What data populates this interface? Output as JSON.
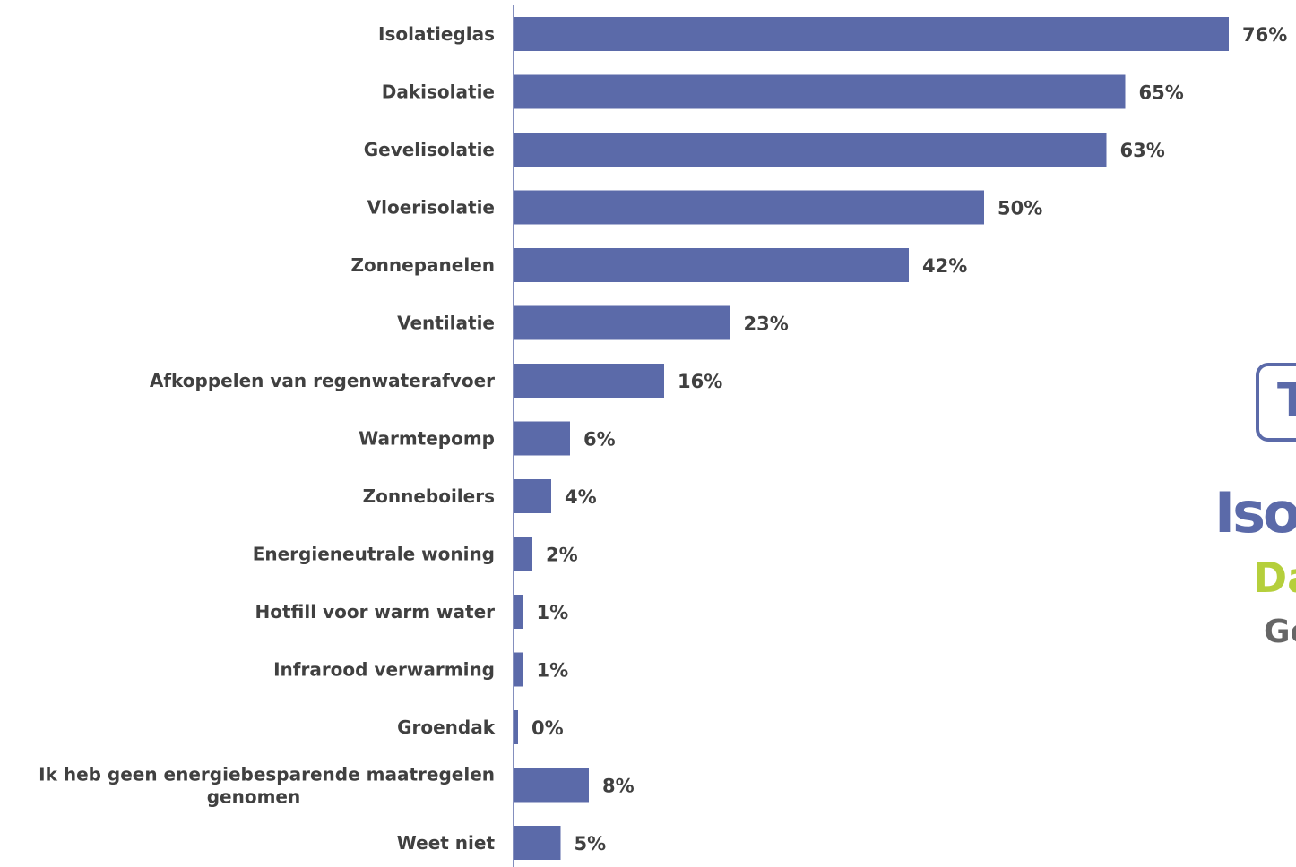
{
  "chart_data": {
    "type": "bar",
    "orientation": "horizontal",
    "title": "",
    "xlabel": "",
    "ylabel": "",
    "categories": [
      "Isolatieglas",
      "Dakisolatie",
      "Gevelisolatie",
      "Vloerisolatie",
      "Zonnepanelen",
      "Ventilatie",
      "Afkoppelen van regenwaterafvoer",
      "Warmtepomp",
      "Zonneboilers",
      "Energieneutrale woning",
      "Hotfill voor warm water",
      "Infrarood verwarming",
      "Groendak",
      "Ik heb geen energiebesparende maatregelen genomen",
      "Weet niet"
    ],
    "values": [
      76,
      65,
      63,
      50,
      42,
      23,
      16,
      6,
      4,
      2,
      1,
      1,
      0,
      8,
      5
    ],
    "value_labels": [
      "76%",
      "65%",
      "63%",
      "50%",
      "42%",
      "23%",
      "16%",
      "6%",
      "4%",
      "2%",
      "1%",
      "1%",
      "0%",
      "8%",
      "5%"
    ],
    "xlim": [
      0,
      80
    ],
    "grid": false,
    "legend": "none",
    "bar_color": "#5b6aa9",
    "label_color": "#404040"
  },
  "side_panel": {
    "badge_text": "T",
    "rank_1": "Iso",
    "rank_2": "Da",
    "rank_3": "Ge",
    "colors": {
      "rank_1": "#5b6aa9",
      "rank_2": "#b5cf3c",
      "rank_3": "#666666"
    }
  }
}
